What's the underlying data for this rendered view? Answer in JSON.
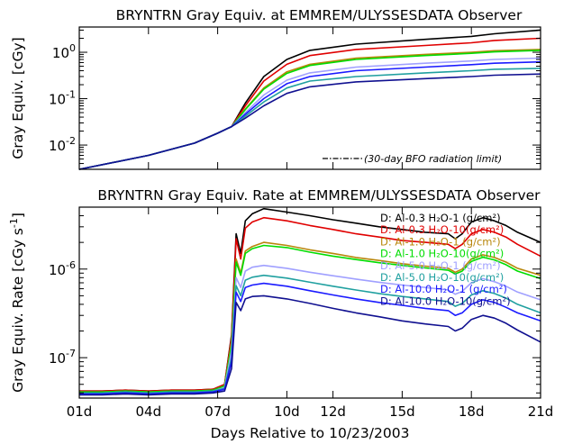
{
  "chart_data": [
    {
      "type": "line",
      "title": "BRYNTRN Gray Equiv. at EMMREM/ULYSSESDATA Observer",
      "ylabel": "Gray Equiv. [cGy]",
      "yscale": "log",
      "ylim": [
        0.003,
        3.5
      ],
      "xlim": [
        0,
        20
      ],
      "yticks": [
        {
          "v": 0.01,
          "base": "10",
          "exp": "-2"
        },
        {
          "v": 0.1,
          "base": "10",
          "exp": "-1"
        },
        {
          "v": 1,
          "base": "10",
          "exp": "0"
        }
      ],
      "annotation": "(30-day BFO radiation limit)",
      "series": [
        {
          "color": "#000000",
          "x": [
            0,
            3,
            5,
            6,
            6.6,
            7.2,
            8,
            9,
            10,
            12,
            15,
            17,
            18,
            20
          ],
          "y": [
            0.003,
            0.006,
            0.011,
            0.018,
            0.025,
            0.08,
            0.3,
            0.7,
            1.1,
            1.5,
            1.9,
            2.2,
            2.5,
            3.0
          ]
        },
        {
          "color": "#e00000",
          "x": [
            0,
            3,
            5,
            6,
            6.6,
            7.2,
            8,
            9,
            10,
            12,
            15,
            17,
            18,
            20
          ],
          "y": [
            0.003,
            0.006,
            0.011,
            0.018,
            0.025,
            0.07,
            0.24,
            0.55,
            0.85,
            1.15,
            1.4,
            1.6,
            1.8,
            2.0
          ]
        },
        {
          "color": "#b8860b",
          "x": [
            0,
            3,
            5,
            6,
            6.6,
            7.2,
            8,
            9,
            10,
            12,
            15,
            17,
            18,
            20
          ],
          "y": [
            0.003,
            0.006,
            0.011,
            0.018,
            0.025,
            0.06,
            0.17,
            0.38,
            0.55,
            0.75,
            0.9,
            1.0,
            1.08,
            1.15
          ]
        },
        {
          "color": "#00dd00",
          "x": [
            0,
            3,
            5,
            6,
            6.6,
            7.2,
            8,
            9,
            10,
            12,
            15,
            17,
            18,
            20
          ],
          "y": [
            0.003,
            0.006,
            0.011,
            0.018,
            0.025,
            0.058,
            0.16,
            0.35,
            0.52,
            0.7,
            0.85,
            0.95,
            1.02,
            1.1
          ]
        },
        {
          "color": "#a0a0ff",
          "x": [
            0,
            3,
            5,
            6,
            6.6,
            7.2,
            8,
            9,
            10,
            12,
            15,
            17,
            18,
            20
          ],
          "y": [
            0.003,
            0.006,
            0.011,
            0.018,
            0.025,
            0.05,
            0.12,
            0.25,
            0.36,
            0.48,
            0.58,
            0.65,
            0.7,
            0.75
          ]
        },
        {
          "color": "#1a1aff",
          "x": [
            0,
            3,
            5,
            6,
            6.6,
            7.2,
            8,
            9,
            10,
            12,
            15,
            17,
            18,
            20
          ],
          "y": [
            0.003,
            0.006,
            0.011,
            0.018,
            0.025,
            0.046,
            0.1,
            0.21,
            0.3,
            0.4,
            0.48,
            0.54,
            0.58,
            0.62
          ]
        },
        {
          "color": "#20a0a0",
          "x": [
            0,
            3,
            5,
            6,
            6.6,
            7.2,
            8,
            9,
            10,
            12,
            15,
            17,
            18,
            20
          ],
          "y": [
            0.003,
            0.006,
            0.011,
            0.018,
            0.025,
            0.042,
            0.085,
            0.17,
            0.24,
            0.3,
            0.36,
            0.4,
            0.43,
            0.45
          ]
        },
        {
          "color": "#101090",
          "x": [
            0,
            3,
            5,
            6,
            6.6,
            7.2,
            8,
            9,
            10,
            12,
            15,
            17,
            18,
            20
          ],
          "y": [
            0.003,
            0.006,
            0.011,
            0.018,
            0.025,
            0.038,
            0.07,
            0.13,
            0.18,
            0.23,
            0.27,
            0.3,
            0.32,
            0.34
          ]
        }
      ]
    },
    {
      "type": "line",
      "title": "BRYNTRN Gray Equiv. Rate at EMMREM/ULYSSESDATA Observer",
      "ylabel": "Gray Equiv. Rate [cGy s",
      "ylabel_exp": "-1",
      "ylabel_end": "]",
      "xlabel": "Days Relative to 10/23/2003",
      "yscale": "log",
      "ylim": [
        3.5e-08,
        5e-06
      ],
      "xlim": [
        0,
        20
      ],
      "xticks": [
        {
          "v": 0,
          "label": "01d"
        },
        {
          "v": 3,
          "label": "04d"
        },
        {
          "v": 6,
          "label": "07d"
        },
        {
          "v": 9,
          "label": "10d"
        },
        {
          "v": 11,
          "label": "12d"
        },
        {
          "v": 14,
          "label": "15d"
        },
        {
          "v": 17,
          "label": "18d"
        },
        {
          "v": 20,
          "label": "21d"
        }
      ],
      "yticks": [
        {
          "v": 1e-07,
          "base": "10",
          "exp": "-7"
        },
        {
          "v": 1e-06,
          "base": "10",
          "exp": "-6"
        }
      ],
      "legend_position": "top-right",
      "series": [
        {
          "name": "D: Al-0.3 H₂O-1 (g/cm²)",
          "color": "#000000",
          "x": [
            0,
            1,
            2,
            3,
            4,
            5,
            5.8,
            6.3,
            6.6,
            6.8,
            7.0,
            7.2,
            7.5,
            8,
            9,
            10,
            11,
            12,
            13,
            14,
            15,
            16,
            16.3,
            16.6,
            17,
            17.5,
            18,
            18.5,
            19,
            20
          ],
          "y": [
            4.2e-08,
            4.2e-08,
            4.3e-08,
            4.2e-08,
            4.3e-08,
            4.3e-08,
            4.4e-08,
            5e-08,
            1.8e-07,
            2.5e-06,
            1.5e-06,
            3.5e-06,
            4.2e-06,
            4.8e-06,
            4.4e-06,
            4e-06,
            3.6e-06,
            3.3e-06,
            3e-06,
            2.8e-06,
            2.6e-06,
            2.5e-06,
            2.2e-06,
            2.5e-06,
            3.4e-06,
            3.8e-06,
            3.5e-06,
            3.1e-06,
            2.6e-06,
            2e-06
          ]
        },
        {
          "name": "D: Al-0.3 H₂O-10(g/cm²)",
          "color": "#e00000",
          "x": [
            0,
            1,
            2,
            3,
            4,
            5,
            5.8,
            6.3,
            6.6,
            6.8,
            7.0,
            7.2,
            7.5,
            8,
            9,
            10,
            11,
            12,
            13,
            14,
            15,
            16,
            16.3,
            16.6,
            17,
            17.5,
            18,
            18.5,
            19,
            20
          ],
          "y": [
            4.2e-08,
            4.2e-08,
            4.3e-08,
            4.2e-08,
            4.3e-08,
            4.3e-08,
            4.4e-08,
            5e-08,
            1.7e-07,
            2.2e-06,
            1.3e-06,
            2.9e-06,
            3.4e-06,
            3.8e-06,
            3.5e-06,
            3.1e-06,
            2.8e-06,
            2.5e-06,
            2.3e-06,
            2.1e-06,
            2e-06,
            1.9e-06,
            1.7e-06,
            1.9e-06,
            2.5e-06,
            2.8e-06,
            2.6e-06,
            2.3e-06,
            1.9e-06,
            1.4e-06
          ]
        },
        {
          "name": "D: Al-1.0 H₂O-1 (g/cm²)",
          "color": "#b8860b",
          "x": [
            0,
            1,
            2,
            3,
            4,
            5,
            5.8,
            6.3,
            6.6,
            6.8,
            7.0,
            7.2,
            7.5,
            8,
            9,
            10,
            11,
            12,
            13,
            14,
            15,
            16,
            16.3,
            16.6,
            17,
            17.5,
            18,
            18.5,
            19,
            20
          ],
          "y": [
            4.1e-08,
            4.1e-08,
            4.2e-08,
            4.1e-08,
            4.2e-08,
            4.2e-08,
            4.3e-08,
            4.8e-08,
            1.5e-07,
            1.3e-06,
            9e-07,
            1.6e-06,
            1.8e-06,
            2e-06,
            1.85e-06,
            1.65e-06,
            1.5e-06,
            1.35e-06,
            1.25e-06,
            1.15e-06,
            1.08e-06,
            1.02e-06,
            9.2e-07,
            1e-06,
            1.3e-06,
            1.45e-06,
            1.35e-06,
            1.2e-06,
            1.02e-06,
            8.5e-07
          ]
        },
        {
          "name": "D: Al-1.0 H₂O-10(g/cm²)",
          "color": "#00dd00",
          "x": [
            0,
            1,
            2,
            3,
            4,
            5,
            5.8,
            6.3,
            6.6,
            6.8,
            7.0,
            7.2,
            7.5,
            8,
            9,
            10,
            11,
            12,
            13,
            14,
            15,
            16,
            16.3,
            16.6,
            17,
            17.5,
            18,
            18.5,
            19,
            20
          ],
          "y": [
            4.1e-08,
            4.1e-08,
            4.2e-08,
            4.1e-08,
            4.2e-08,
            4.2e-08,
            4.3e-08,
            4.8e-08,
            1.4e-07,
            1.2e-06,
            8.5e-07,
            1.5e-06,
            1.7e-06,
            1.85e-06,
            1.75e-06,
            1.55e-06,
            1.4e-06,
            1.28e-06,
            1.18e-06,
            1.1e-06,
            1.03e-06,
            9.7e-07,
            8.8e-07,
            9.5e-07,
            1.22e-06,
            1.36e-06,
            1.27e-06,
            1.12e-06,
            9.5e-07,
            7.8e-07
          ]
        },
        {
          "name": "D: Al-5.0 H₂O-1 (g/cm²)",
          "color": "#a0a0ff",
          "x": [
            0,
            1,
            2,
            3,
            4,
            5,
            5.8,
            6.3,
            6.6,
            6.8,
            7.0,
            7.2,
            7.5,
            8,
            9,
            10,
            11,
            12,
            13,
            14,
            15,
            16,
            16.3,
            16.6,
            17,
            17.5,
            18,
            18.5,
            19,
            20
          ],
          "y": [
            4e-08,
            4e-08,
            4.1e-08,
            4e-08,
            4.1e-08,
            4.1e-08,
            4.2e-08,
            4.6e-08,
            1.2e-07,
            8e-07,
            6.2e-07,
            9.5e-07,
            1.05e-06,
            1.1e-06,
            1.02e-06,
            9.2e-07,
            8.4e-07,
            7.7e-07,
            7.1e-07,
            6.6e-07,
            6.2e-07,
            5.8e-07,
            5.2e-07,
            5.6e-07,
            7e-07,
            7.8e-07,
            7.2e-07,
            6.4e-07,
            5.5e-07,
            4.5e-07
          ]
        },
        {
          "name": "D: Al-5.0 H₂O-10(g/cm²)",
          "color": "#20a0a0",
          "x": [
            0,
            1,
            2,
            3,
            4,
            5,
            5.8,
            6.3,
            6.6,
            6.8,
            7.0,
            7.2,
            7.5,
            8,
            9,
            10,
            11,
            12,
            13,
            14,
            15,
            16,
            16.3,
            16.6,
            17,
            17.5,
            18,
            18.5,
            19,
            20
          ],
          "y": [
            4e-08,
            4e-08,
            4.1e-08,
            4e-08,
            4.1e-08,
            4.1e-08,
            4.2e-08,
            4.5e-08,
            1e-07,
            6.5e-07,
            5e-07,
            7.5e-07,
            8.1e-07,
            8.5e-07,
            7.9e-07,
            7.1e-07,
            6.4e-07,
            5.8e-07,
            5.3e-07,
            4.9e-07,
            4.6e-07,
            4.3e-07,
            3.8e-07,
            4.1e-07,
            5.1e-07,
            5.7e-07,
            5.3e-07,
            4.7e-07,
            4e-07,
            3.2e-07
          ]
        },
        {
          "name": "D: Al-10.0 H₂O-1 (g/cm²)",
          "color": "#1a1aff",
          "x": [
            0,
            1,
            2,
            3,
            4,
            5,
            5.8,
            6.3,
            6.6,
            6.8,
            7.0,
            7.2,
            7.5,
            8,
            9,
            10,
            11,
            12,
            13,
            14,
            15,
            16,
            16.3,
            16.6,
            17,
            17.5,
            18,
            18.5,
            19,
            20
          ],
          "y": [
            3.9e-08,
            3.9e-08,
            4e-08,
            3.9e-08,
            4e-08,
            4e-08,
            4.1e-08,
            4.4e-08,
            9e-08,
            5.5e-07,
            4.3e-07,
            6.2e-07,
            6.6e-07,
            6.9e-07,
            6.4e-07,
            5.7e-07,
            5.1e-07,
            4.6e-07,
            4.2e-07,
            3.9e-07,
            3.6e-07,
            3.4e-07,
            3e-07,
            3.2e-07,
            4e-07,
            4.5e-07,
            4.2e-07,
            3.7e-07,
            3.2e-07,
            2.6e-07
          ]
        },
        {
          "name": "D: Al-10.0 H₂O-10(g/cm²)",
          "color": "#101090",
          "x": [
            0,
            1,
            2,
            3,
            4,
            5,
            5.8,
            6.3,
            6.6,
            6.8,
            7.0,
            7.2,
            7.5,
            8,
            9,
            10,
            11,
            12,
            13,
            14,
            15,
            16,
            16.3,
            16.6,
            17,
            17.5,
            18,
            18.5,
            19,
            20
          ],
          "y": [
            3.8e-08,
            3.8e-08,
            3.9e-08,
            3.8e-08,
            3.9e-08,
            3.9e-08,
            4e-08,
            4.2e-08,
            7.5e-08,
            4.2e-07,
            3.4e-07,
            4.6e-07,
            4.9e-07,
            5e-07,
            4.6e-07,
            4.1e-07,
            3.6e-07,
            3.2e-07,
            2.9e-07,
            2.6e-07,
            2.4e-07,
            2.25e-07,
            2e-07,
            2.15e-07,
            2.7e-07,
            3e-07,
            2.8e-07,
            2.45e-07,
            2.05e-07,
            1.5e-07
          ]
        }
      ]
    }
  ]
}
